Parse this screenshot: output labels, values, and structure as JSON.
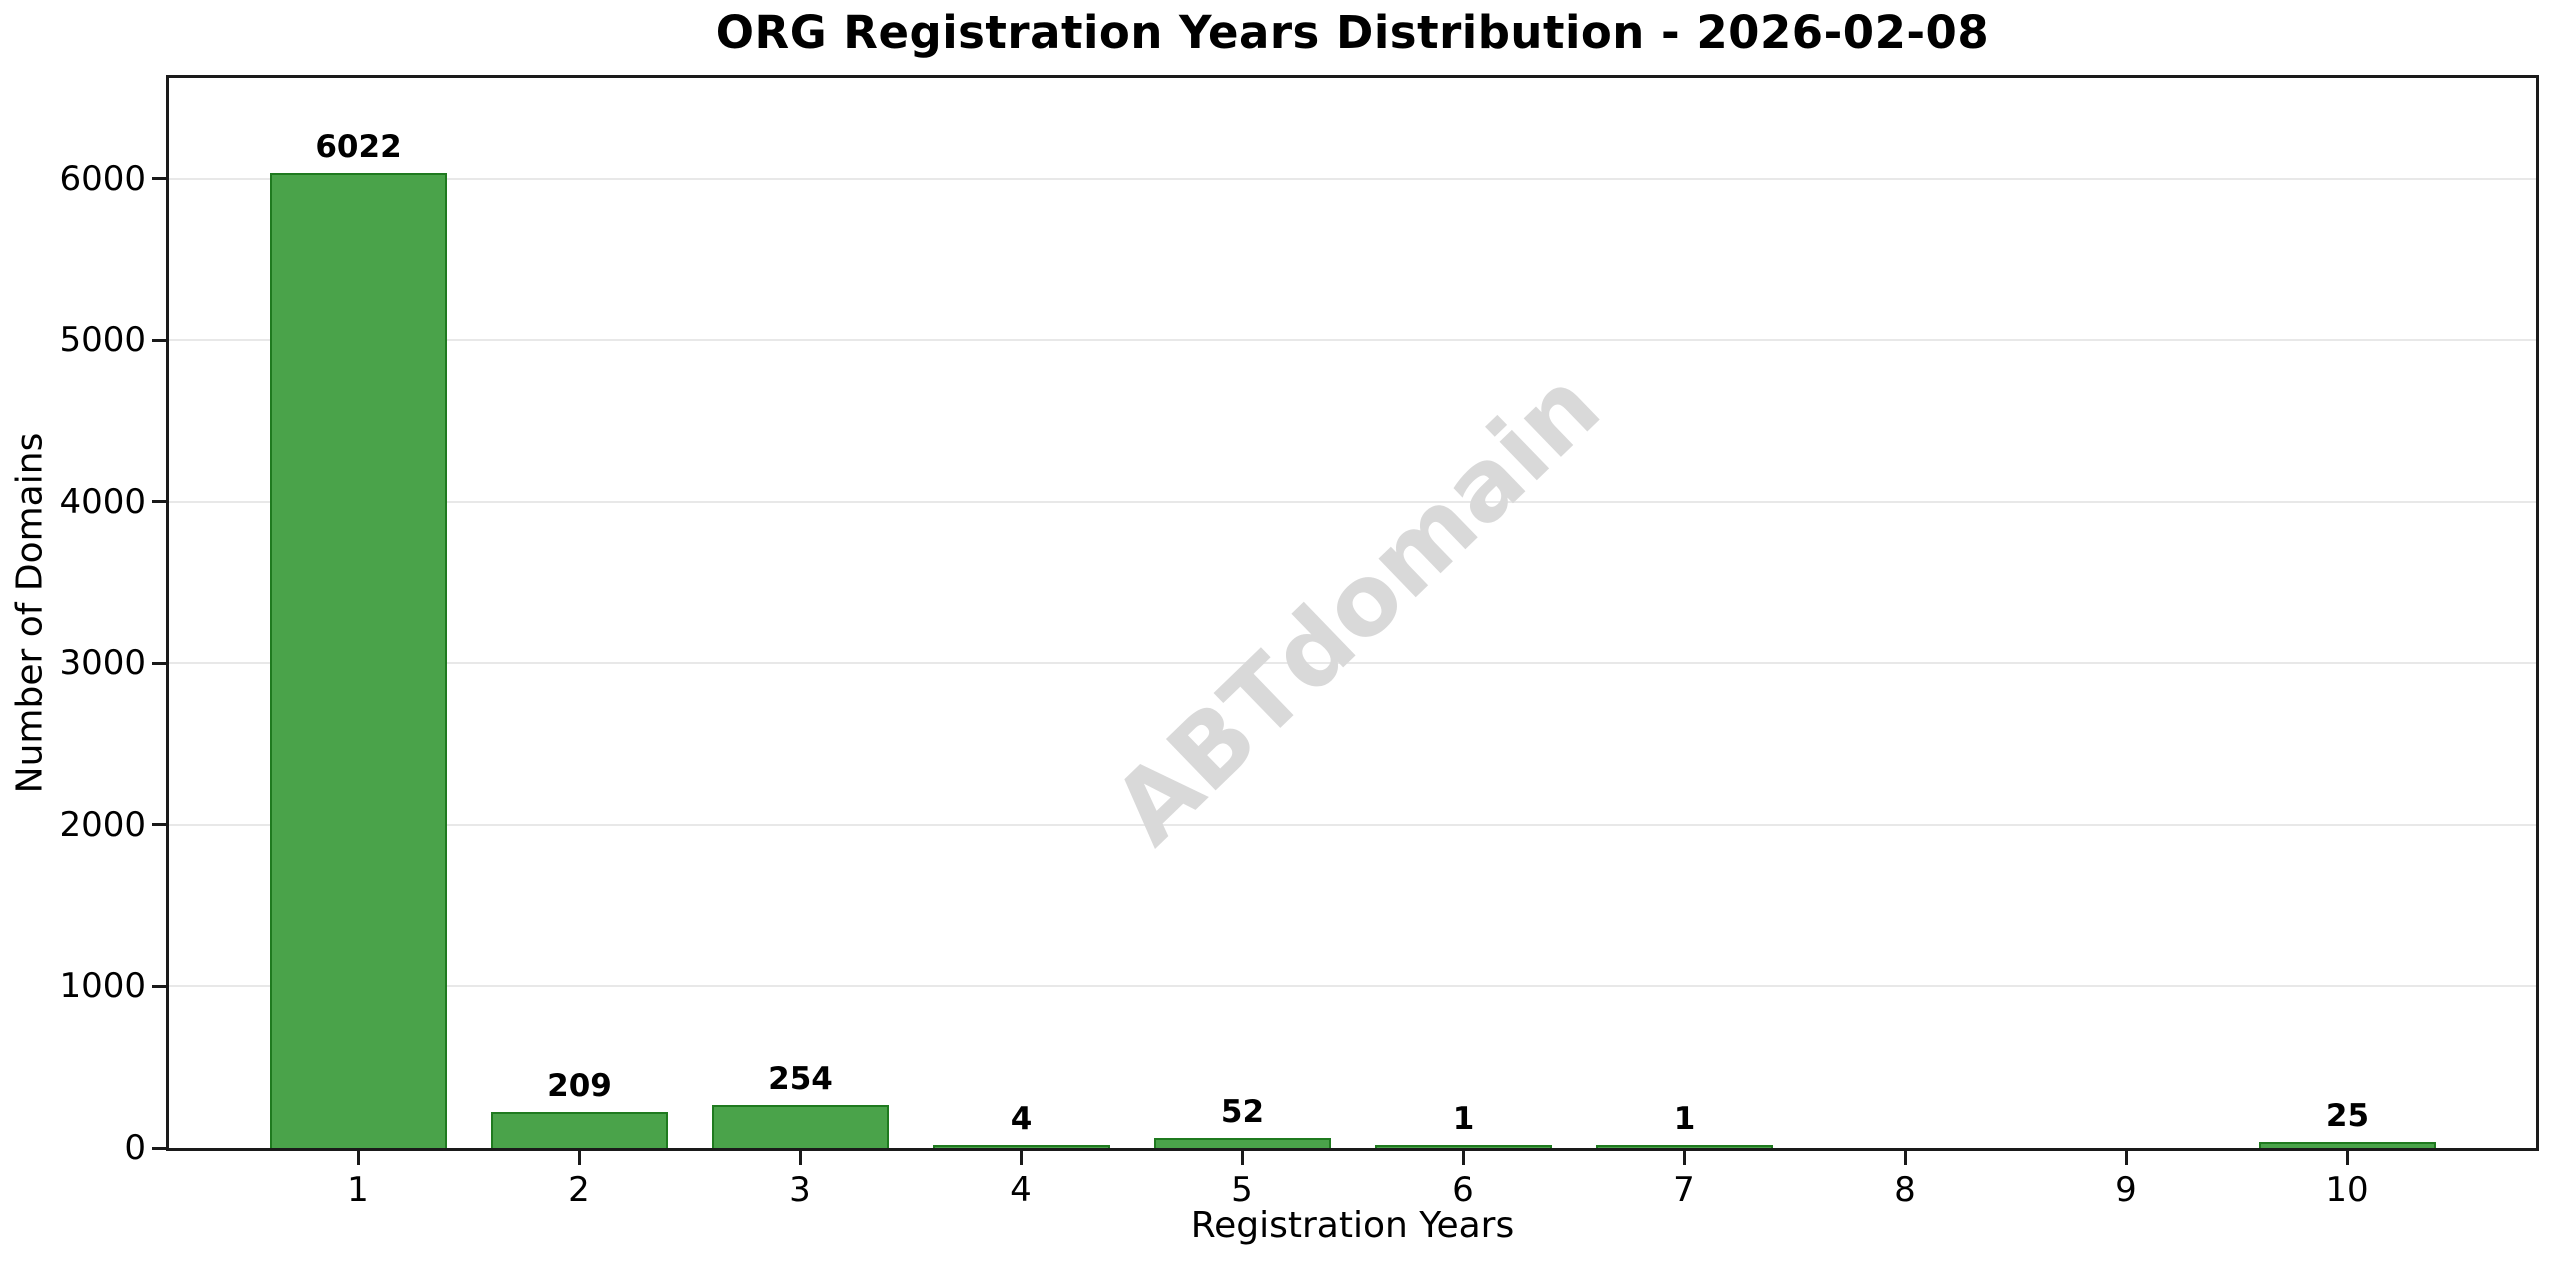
{
  "title": "ORG Registration Years Distribution - 2026-02-08",
  "watermark": "ABTdomain",
  "chart_data": {
    "type": "bar",
    "title": "ORG Registration Years Distribution - 2026-02-08",
    "xlabel": "Registration Years",
    "ylabel": "Number of Domains",
    "categories": [
      "1",
      "2",
      "3",
      "4",
      "5",
      "6",
      "7",
      "8",
      "9",
      "10"
    ],
    "values": [
      6022,
      209,
      254,
      4,
      52,
      1,
      1,
      0,
      0,
      25
    ],
    "bar_labels": [
      "6022",
      "209",
      "254",
      "4",
      "52",
      "1",
      "1",
      "",
      "",
      "25"
    ],
    "yticks": [
      0,
      1000,
      2000,
      3000,
      4000,
      5000,
      6000
    ],
    "ylim": [
      0,
      6624
    ],
    "bar_width_fraction": 0.8,
    "grid": "horizontal",
    "legend": "none",
    "watermark_text": "ABTdomain",
    "colors": {
      "bar_fill": "#4aa34a",
      "bar_edge": "#1f7a1f",
      "grid": "#e8e8e8",
      "spine": "#1a1a1a",
      "text": "#000000",
      "watermark": "#d9d9d9",
      "background": "#ffffff"
    }
  }
}
